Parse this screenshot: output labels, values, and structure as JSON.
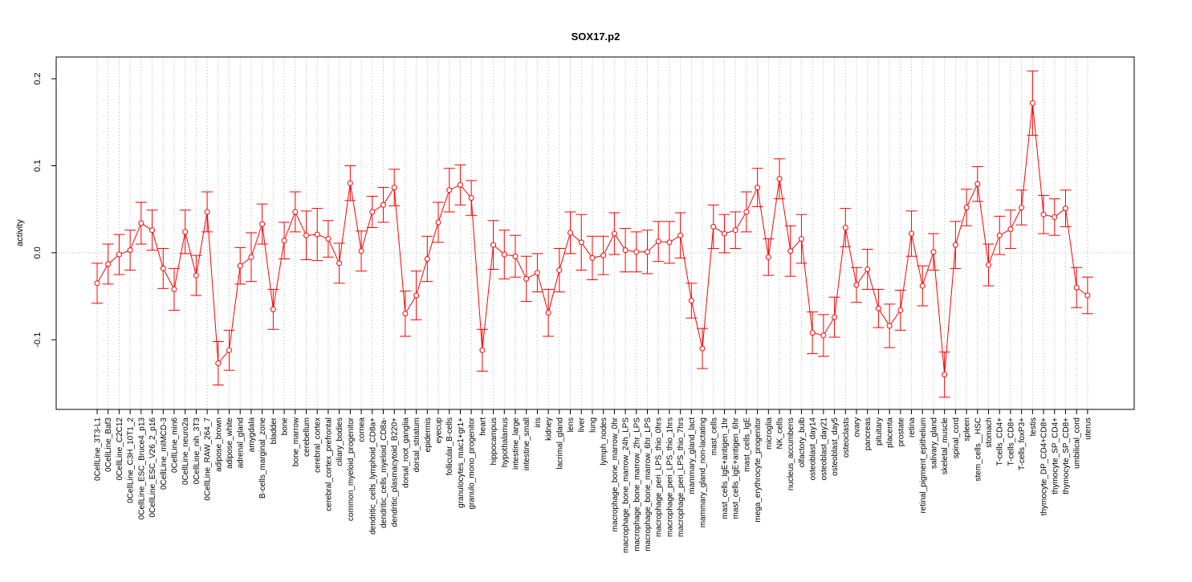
{
  "chart_data": {
    "type": "line",
    "title": "SOX17.p2",
    "xlabel": "",
    "ylabel": "activity",
    "ylim": [
      -0.18,
      0.225
    ],
    "yticks": [
      -0.1,
      0.0,
      0.1,
      0.2
    ],
    "ytick_labels": [
      "-0.1",
      "0.0",
      "0.1",
      "0.2"
    ],
    "grid": true,
    "reference_line": 0.0,
    "colors": {
      "series": "#ff0000",
      "grid": "#d3d3d3",
      "axis": "#000000"
    },
    "categories": [
      "0CellLine_3T3-L1",
      "0CellLine_Baf3",
      "0CellLine_C2C12",
      "0CellLine_C3H_10T1_2",
      "0CellLine_ESC_Bruce4_p13",
      "0CellLine_ESC_V26_2_p16",
      "0CellLine_mIMCD-3",
      "0CellLine_min6",
      "0CellLine_neuro2a",
      "0CellLine_nih_3T3",
      "0CellLine_RAW_264_7",
      "adipose_brown",
      "adipose_white",
      "adrenal_gland",
      "amygdala",
      "B-cells_marginal_zone",
      "bladder",
      "bone",
      "bone_marrow",
      "cerebellum",
      "cerebral_cortex",
      "cerebral_cortex_prefrontal",
      "ciliary_bodies",
      "common_myeloid_progenitor",
      "cornea",
      "dendritic_cells_lymphoid_CD8a+",
      "dendritic_cells_myeloid_CD8a-",
      "dendritic_plasmacytoid_B220+",
      "dorsal_root_ganglia",
      "dorsal_striatum",
      "epidermis",
      "eyecup",
      "follicular_B-cells",
      "granulocytes_mac1+gr1+",
      "granulo_mono_progenitor",
      "heart",
      "hippocampus",
      "hypothalamus",
      "intestine_large",
      "intestine_small",
      "iris",
      "kidney",
      "lacrimal_gland",
      "lens",
      "liver",
      "lung",
      "lymph_nodes",
      "macrophage_bone_marrow_0hr",
      "macrophage_bone_marrow_24h_LPS",
      "macrophage_bone_marrow_2hr_LPS",
      "macrophage_bone_marrow_6hr_LPS",
      "macrophage_peri_LPS_thio_0hrs",
      "macrophage_peri_LPS_thio_1hrs",
      "macrophage_peri_LPS_thio_7hrs",
      "mammary_gland_lact",
      "mammary_gland_non-lactating",
      "mast_cells",
      "mast_cells_IgE+antigen_1hr",
      "mast_cells_IgE+antigen_6hr",
      "mast_cells_IgE",
      "mega_erythrocyte_progenitor",
      "microglia",
      "NK_cells",
      "nucleus_accumbens",
      "olfactory_bulb",
      "osteoblast_day14",
      "osteoblast_day21",
      "osteoblast_day5",
      "osteoclasts",
      "ovary",
      "pancreas",
      "pituitary",
      "placenta",
      "prostate",
      "retina",
      "retinal_pigment_epithelium",
      "salivary_gland",
      "skeletal_muscle",
      "spinal_cord",
      "spleen",
      "stem_cells__HSC",
      "stomach",
      "T-cells_CD4+",
      "T-cells_CD8+",
      "T-cells_foxP3+",
      "testis",
      "thymocyte_DP_CD4+CD8+",
      "thymocyte_SP_CD4+",
      "thymocyte_SP_CD8+",
      "umbilical_cord",
      "uterus"
    ],
    "series": [
      {
        "values": [
          -0.035,
          -0.013,
          -0.002,
          0.003,
          0.034,
          0.026,
          -0.018,
          -0.042,
          0.024,
          -0.026,
          0.047,
          -0.127,
          -0.112,
          -0.015,
          -0.005,
          0.033,
          -0.065,
          0.014,
          0.047,
          0.02,
          0.021,
          0.016,
          -0.012,
          0.08,
          0.002,
          0.047,
          0.055,
          0.075,
          -0.07,
          -0.049,
          -0.007,
          0.035,
          0.072,
          0.078,
          0.063,
          -0.112,
          0.009,
          -0.002,
          -0.004,
          -0.03,
          -0.023,
          -0.069,
          -0.02,
          0.023,
          0.012,
          -0.006,
          -0.003,
          0.022,
          0.003,
          0.001,
          0.001,
          0.013,
          0.012,
          0.02,
          -0.055,
          -0.11,
          0.03,
          0.022,
          0.026,
          0.047,
          0.075,
          -0.005,
          0.085,
          0.002,
          0.016,
          -0.092,
          -0.095,
          -0.074,
          0.029,
          -0.037,
          -0.019,
          -0.064,
          -0.084,
          -0.066,
          0.022,
          -0.038,
          0.001,
          -0.14,
          0.009,
          0.052,
          0.079,
          -0.014,
          0.02,
          0.027,
          0.052,
          0.172,
          0.044,
          0.041,
          0.051,
          -0.04,
          -0.049
        ],
        "errors": [
          0.023,
          0.023,
          0.023,
          0.023,
          0.024,
          0.023,
          0.023,
          0.024,
          0.025,
          0.023,
          0.023,
          0.025,
          0.023,
          0.021,
          0.028,
          0.023,
          0.023,
          0.021,
          0.023,
          0.028,
          0.03,
          0.021,
          0.023,
          0.02,
          0.023,
          0.018,
          0.02,
          0.021,
          0.026,
          0.028,
          0.026,
          0.023,
          0.025,
          0.023,
          0.02,
          0.024,
          0.028,
          0.028,
          0.024,
          0.026,
          0.022,
          0.027,
          0.025,
          0.024,
          0.032,
          0.025,
          0.022,
          0.024,
          0.025,
          0.023,
          0.025,
          0.023,
          0.024,
          0.026,
          0.02,
          0.023,
          0.025,
          0.022,
          0.021,
          0.023,
          0.022,
          0.021,
          0.023,
          0.029,
          0.028,
          0.024,
          0.024,
          0.023,
          0.022,
          0.02,
          0.023,
          0.022,
          0.025,
          0.023,
          0.026,
          0.023,
          0.021,
          0.026,
          0.027,
          0.021,
          0.02,
          0.024,
          0.022,
          0.022,
          0.02,
          0.037,
          0.022,
          0.021,
          0.021,
          0.023,
          0.021
        ]
      }
    ]
  }
}
